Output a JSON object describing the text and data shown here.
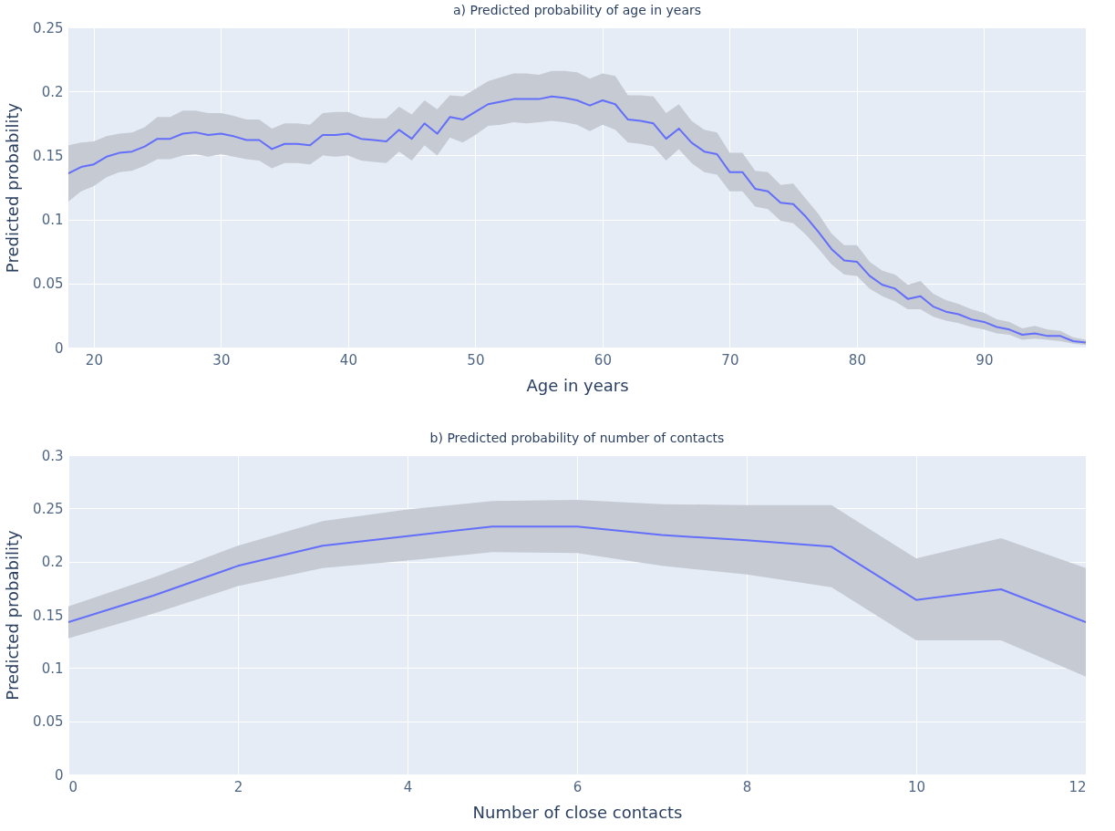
{
  "chart_data": [
    {
      "type": "line",
      "title": "a) Predicted probability of age in years",
      "xlabel": "Age in years",
      "ylabel": "Predicted probability",
      "x": [
        18,
        19,
        20,
        21,
        22,
        23,
        24,
        25,
        26,
        27,
        28,
        29,
        30,
        31,
        32,
        33,
        34,
        35,
        36,
        37,
        38,
        39,
        40,
        41,
        42,
        43,
        44,
        45,
        46,
        47,
        48,
        49,
        50,
        51,
        52,
        53,
        54,
        55,
        56,
        57,
        58,
        59,
        60,
        61,
        62,
        63,
        64,
        65,
        66,
        67,
        68,
        69,
        70,
        71,
        72,
        73,
        74,
        75,
        76,
        77,
        78,
        79,
        80,
        81,
        82,
        83,
        84,
        85,
        86,
        87,
        88,
        89,
        90,
        91,
        92,
        93,
        94,
        95,
        96,
        97,
        98
      ],
      "series": [
        {
          "color": "#636efa",
          "values": [
            0.136,
            0.141,
            0.143,
            0.149,
            0.152,
            0.153,
            0.157,
            0.163,
            0.163,
            0.167,
            0.168,
            0.166,
            0.167,
            0.165,
            0.162,
            0.162,
            0.155,
            0.159,
            0.159,
            0.158,
            0.166,
            0.166,
            0.167,
            0.163,
            0.162,
            0.161,
            0.17,
            0.163,
            0.175,
            0.167,
            0.18,
            0.178,
            0.184,
            0.19,
            0.192,
            0.194,
            0.194,
            0.194,
            0.196,
            0.195,
            0.193,
            0.189,
            0.193,
            0.19,
            0.178,
            0.177,
            0.175,
            0.163,
            0.171,
            0.16,
            0.153,
            0.151,
            0.137,
            0.137,
            0.124,
            0.122,
            0.113,
            0.112,
            0.102,
            0.09,
            0.077,
            0.068,
            0.067,
            0.056,
            0.049,
            0.046,
            0.038,
            0.04,
            0.032,
            0.028,
            0.026,
            0.022,
            0.02,
            0.016,
            0.014,
            0.01,
            0.011,
            0.009,
            0.009,
            0.005,
            0.004
          ],
          "upper": [
            0.158,
            0.16,
            0.161,
            0.165,
            0.167,
            0.168,
            0.172,
            0.18,
            0.18,
            0.185,
            0.185,
            0.183,
            0.183,
            0.181,
            0.178,
            0.178,
            0.171,
            0.175,
            0.175,
            0.174,
            0.183,
            0.184,
            0.184,
            0.18,
            0.179,
            0.179,
            0.188,
            0.182,
            0.193,
            0.186,
            0.197,
            0.196,
            0.202,
            0.208,
            0.211,
            0.214,
            0.214,
            0.213,
            0.216,
            0.216,
            0.215,
            0.21,
            0.214,
            0.212,
            0.197,
            0.197,
            0.196,
            0.183,
            0.19,
            0.177,
            0.17,
            0.168,
            0.152,
            0.152,
            0.138,
            0.137,
            0.127,
            0.128,
            0.116,
            0.104,
            0.089,
            0.08,
            0.08,
            0.067,
            0.06,
            0.057,
            0.049,
            0.052,
            0.042,
            0.037,
            0.034,
            0.03,
            0.027,
            0.022,
            0.02,
            0.015,
            0.017,
            0.014,
            0.013,
            0.008,
            0.006
          ],
          "lower": [
            0.114,
            0.122,
            0.126,
            0.133,
            0.137,
            0.138,
            0.142,
            0.147,
            0.147,
            0.15,
            0.151,
            0.149,
            0.151,
            0.149,
            0.147,
            0.146,
            0.14,
            0.144,
            0.144,
            0.143,
            0.15,
            0.149,
            0.15,
            0.146,
            0.145,
            0.144,
            0.153,
            0.146,
            0.158,
            0.15,
            0.164,
            0.16,
            0.166,
            0.173,
            0.174,
            0.176,
            0.175,
            0.176,
            0.177,
            0.176,
            0.174,
            0.169,
            0.174,
            0.17,
            0.16,
            0.159,
            0.157,
            0.146,
            0.155,
            0.144,
            0.137,
            0.135,
            0.122,
            0.122,
            0.11,
            0.108,
            0.099,
            0.097,
            0.088,
            0.077,
            0.065,
            0.057,
            0.056,
            0.046,
            0.04,
            0.036,
            0.03,
            0.03,
            0.024,
            0.021,
            0.019,
            0.016,
            0.014,
            0.011,
            0.01,
            0.006,
            0.007,
            0.006,
            0.005,
            0.003,
            0.002
          ]
        }
      ],
      "xlim": [
        18,
        98
      ],
      "ylim": [
        0,
        0.25
      ],
      "xticks": [
        20,
        30,
        40,
        50,
        60,
        70,
        80,
        90
      ],
      "yticks": [
        0,
        0.05,
        0.1,
        0.15,
        0.2,
        0.25
      ],
      "grid": true
    },
    {
      "type": "line",
      "title": "b) Predicted probability of number of contacts",
      "xlabel": "Number of close contacts",
      "ylabel": "Predicted probability",
      "x": [
        0,
        1,
        2,
        3,
        4,
        5,
        6,
        7,
        8,
        9,
        10,
        11,
        12
      ],
      "series": [
        {
          "color": "#636efa",
          "values": [
            0.143,
            0.168,
            0.196,
            0.215,
            0.224,
            0.233,
            0.233,
            0.225,
            0.22,
            0.214,
            0.164,
            0.174,
            0.143
          ],
          "upper": [
            0.158,
            0.185,
            0.215,
            0.238,
            0.249,
            0.257,
            0.258,
            0.254,
            0.253,
            0.253,
            0.203,
            0.222,
            0.194
          ],
          "lower": [
            0.128,
            0.151,
            0.177,
            0.194,
            0.201,
            0.209,
            0.208,
            0.196,
            0.188,
            0.176,
            0.126,
            0.126,
            0.092
          ]
        }
      ],
      "xlim": [
        0,
        12
      ],
      "ylim": [
        0,
        0.3
      ],
      "xticks": [
        0,
        2,
        4,
        6,
        8,
        10,
        12
      ],
      "yticks": [
        0,
        0.05,
        0.1,
        0.15,
        0.2,
        0.25,
        0.3
      ],
      "grid": true
    }
  ]
}
